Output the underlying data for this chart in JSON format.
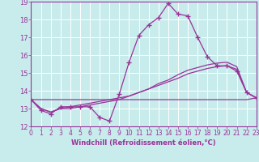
{
  "title": "",
  "xlabel": "Windchill (Refroidissement éolien,°C)",
  "ylabel": "",
  "xlim": [
    0,
    23
  ],
  "ylim": [
    12,
    19
  ],
  "yticks": [
    12,
    13,
    14,
    15,
    16,
    17,
    18,
    19
  ],
  "xticks": [
    0,
    1,
    2,
    3,
    4,
    5,
    6,
    7,
    8,
    9,
    10,
    11,
    12,
    13,
    14,
    15,
    16,
    17,
    18,
    19,
    20,
    21,
    22,
    23
  ],
  "background_color": "#c8ecec",
  "grid_color": "#aadddd",
  "line_color": "#993399",
  "series_main": [
    13.5,
    12.9,
    12.7,
    13.1,
    13.1,
    13.1,
    13.1,
    12.5,
    12.3,
    13.8,
    15.6,
    17.1,
    17.7,
    18.1,
    18.9,
    18.3,
    18.2,
    17.0,
    15.9,
    15.4,
    15.4,
    15.1,
    13.9,
    13.6
  ],
  "series_line1": [
    13.5,
    13.0,
    12.8,
    13.0,
    13.0,
    13.1,
    13.2,
    13.3,
    13.4,
    13.5,
    13.7,
    13.9,
    14.1,
    14.3,
    14.5,
    14.7,
    14.95,
    15.1,
    15.25,
    15.35,
    15.4,
    15.2,
    13.9,
    13.6
  ],
  "series_line2": [
    13.5,
    13.0,
    12.8,
    13.0,
    13.1,
    13.2,
    13.3,
    13.4,
    13.5,
    13.6,
    13.7,
    13.9,
    14.1,
    14.4,
    14.6,
    14.9,
    15.15,
    15.3,
    15.45,
    15.55,
    15.6,
    15.35,
    13.9,
    13.6
  ],
  "series_line3": [
    13.5,
    13.5,
    13.5,
    13.5,
    13.5,
    13.5,
    13.5,
    13.5,
    13.5,
    13.5,
    13.5,
    13.5,
    13.5,
    13.5,
    13.5,
    13.5,
    13.5,
    13.5,
    13.5,
    13.5,
    13.5,
    13.5,
    13.5,
    13.6
  ]
}
